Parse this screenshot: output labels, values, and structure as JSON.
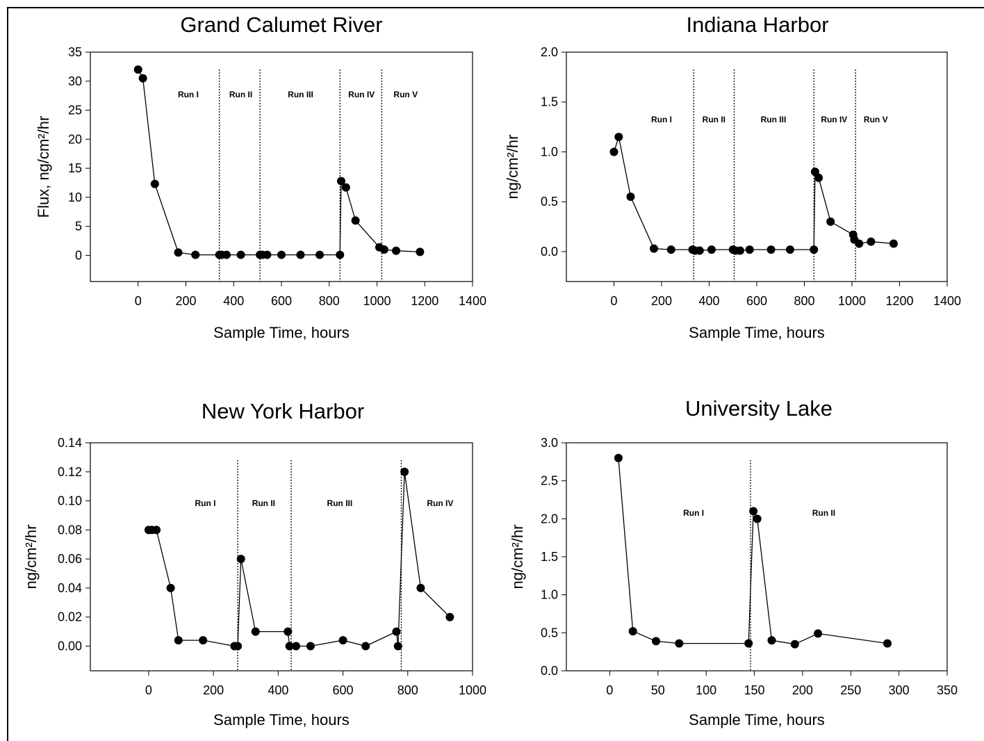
{
  "chart_data": [
    {
      "type": "line",
      "title": "Grand Calumet River",
      "xlabel": "Sample Time, hours",
      "ylabel": "Flux, ng/cm²/hr",
      "xlim": [
        -200,
        1400
      ],
      "ylim": [
        -4.5,
        35
      ],
      "xticks": [
        0,
        200,
        400,
        600,
        800,
        1000,
        1200,
        1400
      ],
      "yticks": [
        0,
        5,
        10,
        15,
        20,
        25,
        30,
        35
      ],
      "xtick_labels": [
        "0",
        "200",
        "400",
        "600",
        "800",
        "1000",
        "1200",
        "1400"
      ],
      "ytick_labels": [
        "0",
        "5",
        "10",
        "15",
        "20",
        "25",
        "30",
        "35"
      ],
      "grid": false,
      "dividers": [
        340,
        510,
        845,
        1020
      ],
      "runs": [
        {
          "label": "Run I",
          "x": 210
        },
        {
          "label": "Run II",
          "x": 430
        },
        {
          "label": "Run III",
          "x": 680
        },
        {
          "label": "Run IV",
          "x": 935
        },
        {
          "label": "Run V",
          "x": 1120
        }
      ],
      "series": [
        {
          "x": [
            0,
            20,
            70,
            168,
            240,
            340,
            350,
            370,
            430,
            510,
            520,
            540,
            600,
            680,
            760,
            845,
            850,
            870,
            910,
            1010,
            1030,
            1080,
            1180
          ],
          "y": [
            32,
            30.5,
            12.3,
            0.5,
            0.1,
            0.1,
            0.1,
            0.1,
            0.1,
            0.1,
            0.1,
            0.1,
            0.1,
            0.1,
            0.1,
            0.1,
            12.8,
            11.7,
            6.0,
            1.4,
            1.0,
            0.8,
            0.6
          ]
        }
      ]
    },
    {
      "type": "line",
      "title": "Indiana Harbor",
      "xlabel": "Sample Time, hours",
      "ylabel": "ng/cm²/hr",
      "xlim": [
        -200,
        1400
      ],
      "ylim": [
        -0.3,
        2.0
      ],
      "xticks": [
        0,
        200,
        400,
        600,
        800,
        1000,
        1200,
        1400
      ],
      "yticks": [
        0,
        0.5,
        1.0,
        1.5,
        2.0
      ],
      "xtick_labels": [
        "0",
        "200",
        "400",
        "600",
        "800",
        "1000",
        "1200",
        "1400"
      ],
      "ytick_labels": [
        "0.0",
        "0.5",
        "1.0",
        "1.5",
        "2.0"
      ],
      "grid": false,
      "dividers": [
        335,
        505,
        840,
        1015
      ],
      "runs": [
        {
          "label": "Run I",
          "x": 200
        },
        {
          "label": "Run II",
          "x": 420
        },
        {
          "label": "Run III",
          "x": 670
        },
        {
          "label": "Run IV",
          "x": 925
        },
        {
          "label": "Run V",
          "x": 1100
        }
      ],
      "series": [
        {
          "x": [
            0,
            20,
            70,
            168,
            240,
            330,
            340,
            360,
            410,
            500,
            510,
            530,
            570,
            660,
            740,
            840,
            845,
            860,
            910,
            1005,
            1010,
            1030,
            1080,
            1175
          ],
          "y": [
            1.0,
            1.15,
            0.55,
            0.03,
            0.02,
            0.02,
            0.01,
            0.01,
            0.02,
            0.02,
            0.01,
            0.01,
            0.02,
            0.02,
            0.02,
            0.02,
            0.8,
            0.74,
            0.3,
            0.17,
            0.12,
            0.08,
            0.1,
            0.08
          ]
        }
      ]
    },
    {
      "type": "line",
      "title": "New York Harbor",
      "xlabel": "Sample Time, hours",
      "ylabel": "ng/cm²/hr",
      "xlim": [
        -180,
        1000
      ],
      "ylim": [
        -0.017,
        0.14
      ],
      "xticks": [
        0,
        200,
        400,
        600,
        800,
        1000
      ],
      "yticks": [
        0,
        0.02,
        0.04,
        0.06,
        0.08,
        0.1,
        0.12,
        0.14
      ],
      "xtick_labels": [
        "0",
        "200",
        "400",
        "600",
        "800",
        "1000"
      ],
      "ytick_labels": [
        "0.00",
        "0.02",
        "0.04",
        "0.06",
        "0.08",
        "0.10",
        "0.12",
        "0.14"
      ],
      "grid": false,
      "dividers": [
        275,
        440,
        780
      ],
      "runs": [
        {
          "label": "Run I",
          "x": 175
        },
        {
          "label": "Run II",
          "x": 355
        },
        {
          "label": "Run III",
          "x": 590
        },
        {
          "label": "Run IV",
          "x": 900
        }
      ],
      "series": [
        {
          "x": [
            0,
            10,
            24,
            68,
            92,
            168,
            265,
            275,
            285,
            330,
            430,
            435,
            455,
            500,
            600,
            670,
            765,
            770,
            790,
            840,
            930
          ],
          "y": [
            0.08,
            0.08,
            0.08,
            0.04,
            0.004,
            0.004,
            0.0,
            0.0,
            0.06,
            0.01,
            0.01,
            0.0,
            0.0,
            0.0,
            0.004,
            0.0,
            0.01,
            0.0,
            0.12,
            0.04,
            0.02
          ]
        }
      ]
    },
    {
      "type": "line",
      "title": "University Lake",
      "xlabel": "Sample Time, hours",
      "ylabel": "ng/cm²/hr",
      "xlim": [
        -45,
        350
      ],
      "ylim": [
        0,
        3.0
      ],
      "xticks": [
        0,
        50,
        100,
        150,
        200,
        250,
        300,
        350
      ],
      "yticks": [
        0,
        0.5,
        1.0,
        1.5,
        2.0,
        2.5,
        3.0
      ],
      "xtick_labels": [
        "0",
        "50",
        "100",
        "150",
        "200",
        "250",
        "300",
        "350"
      ],
      "ytick_labels": [
        "0.0",
        "0.5",
        "1.0",
        "1.5",
        "2.0",
        "2.5",
        "3.0"
      ],
      "grid": false,
      "dividers": [
        146
      ],
      "runs": [
        {
          "label": "Run I",
          "x": 87
        },
        {
          "label": "Run II",
          "x": 222
        }
      ],
      "series": [
        {
          "x": [
            9,
            24,
            48,
            72,
            144,
            149,
            153,
            168,
            192,
            216,
            288
          ],
          "y": [
            2.8,
            0.52,
            0.39,
            0.36,
            0.36,
            2.1,
            2.0,
            0.4,
            0.35,
            0.49,
            0.36
          ]
        }
      ]
    }
  ]
}
